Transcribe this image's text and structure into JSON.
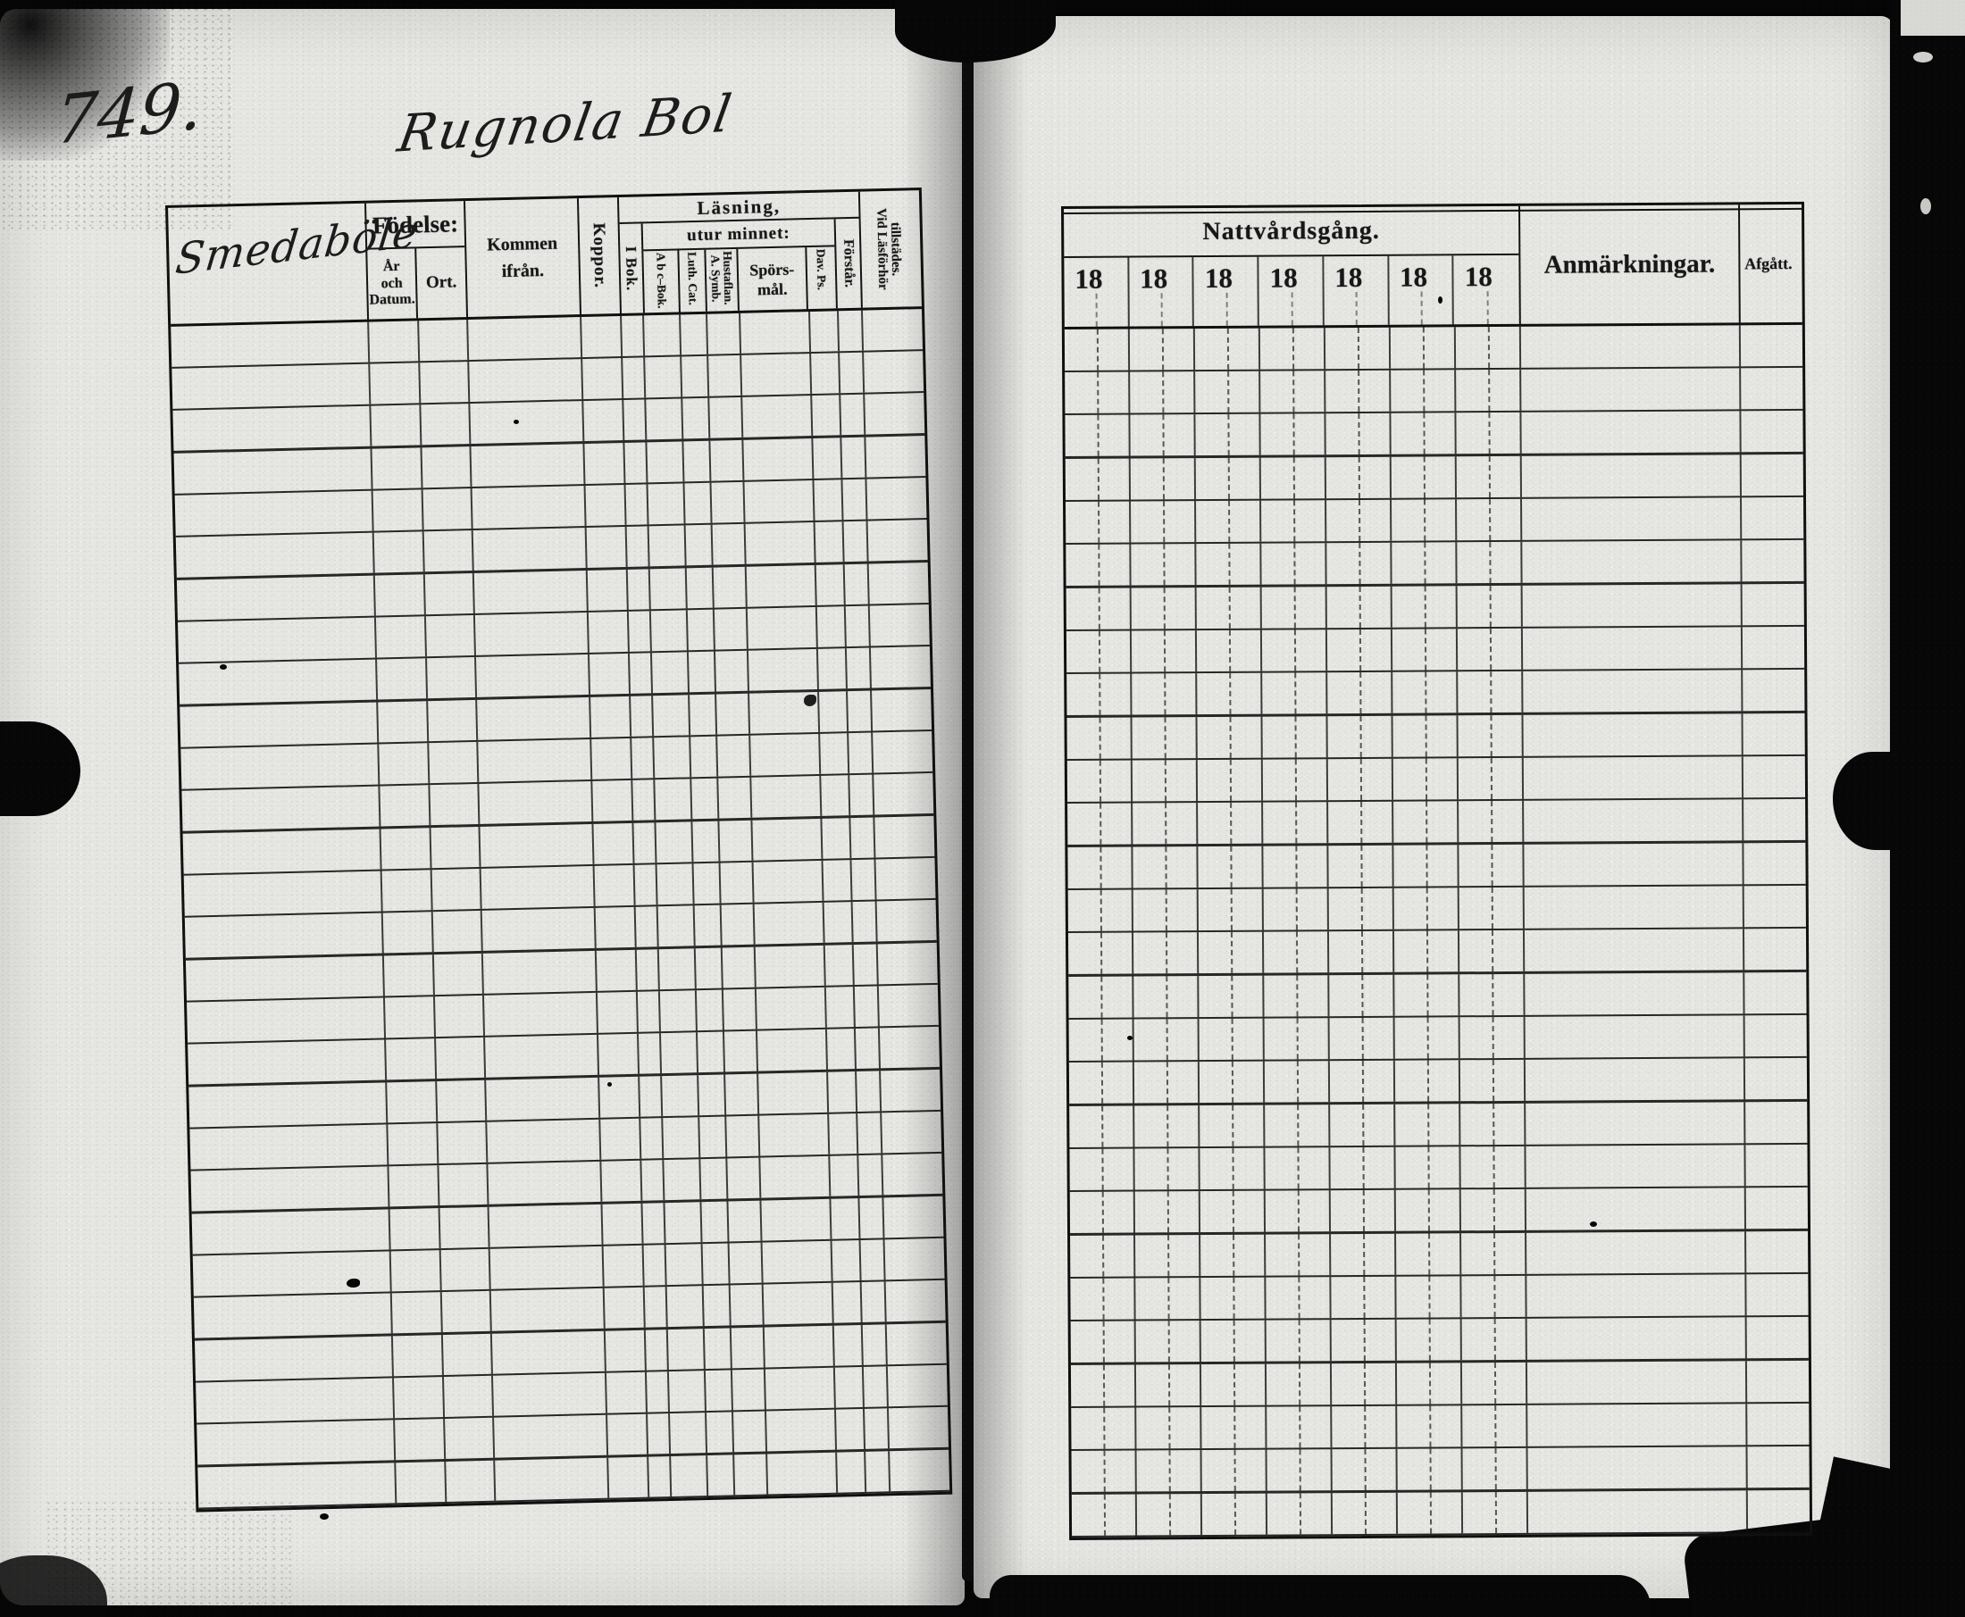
{
  "page_number": "749.",
  "left_page": {
    "handwritten_title": "Rugnola Bol",
    "handwritten_village": "Smedaböle",
    "table": {
      "rows": 28,
      "headers": {
        "fodelse": "Födelse:",
        "ar_och_datum": "År\noch\nDatum.",
        "ort": "Ort.",
        "kommen_ifran": "Kommen\nifrån.",
        "koppor": "Koppor.",
        "lasning": "Läsning,",
        "i_bok": "I Bok.",
        "utur_minnet": "utur minnet:",
        "abc_bok": "A b c–Bok.",
        "luth_cat": "Luth. Cat.",
        "a_symb_hustaflan": "A. Symb.\nHustaflan.",
        "sporsmal": "Spörs-\nmål.",
        "dav_ps": "Dav. Ps.",
        "forstar": "Förstår.",
        "vid_lasforhor": "Vid Läsförhör\ntillstädes."
      }
    }
  },
  "right_page": {
    "table": {
      "rows": 28,
      "headers": {
        "nattvardsgang": "Nattvårdsgång.",
        "year_labels": [
          "18",
          "18",
          "18",
          "18",
          "18",
          "18",
          "18"
        ],
        "anmarkningar": "Anmärkningar.",
        "afgatt": "Afgått."
      }
    }
  }
}
